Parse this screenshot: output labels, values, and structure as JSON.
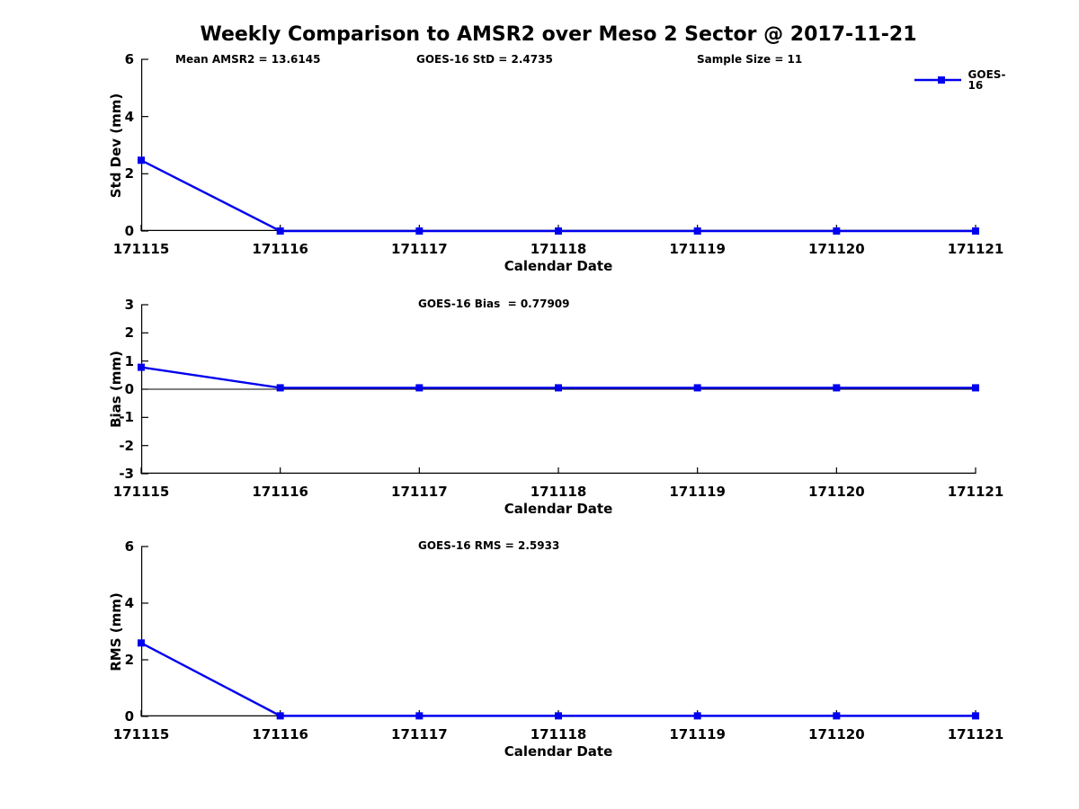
{
  "title": "Weekly Comparison to AMSR2 over Meso 2 Sector @ 2017-11-21",
  "legend": {
    "label": "GOES-16",
    "position": "northeast",
    "line_color": "#0000EE"
  },
  "chart_data": [
    {
      "type": "line",
      "name": "std-dev",
      "ylabel": "Std Dev (mm)",
      "xlabel": "Calendar Date",
      "x": [
        171115,
        171116,
        171117,
        171118,
        171119,
        171120,
        171121
      ],
      "xticklabels": [
        "171115",
        "171116",
        "171117",
        "171118",
        "171119",
        "171120",
        "171121"
      ],
      "ylim": [
        0,
        6
      ],
      "yticks": [
        0,
        2,
        4,
        6
      ],
      "grid": false,
      "zero_line": false,
      "series": [
        {
          "name": "GOES-16",
          "color": "#0000EE",
          "marker": "square",
          "values": [
            2.4735,
            0,
            0,
            0,
            0,
            0,
            0
          ]
        }
      ],
      "annotations": [
        {
          "text": "Mean AMSR2 = 13.6145"
        },
        {
          "text": "GOES-16 StD = 2.4735"
        },
        {
          "text": "Sample Size = 11"
        }
      ]
    },
    {
      "type": "line",
      "name": "bias",
      "ylabel": "Bias (mm)",
      "xlabel": "Calendar Date",
      "x": [
        171115,
        171116,
        171117,
        171118,
        171119,
        171120,
        171121
      ],
      "xticklabels": [
        "171115",
        "171116",
        "171117",
        "171118",
        "171119",
        "171120",
        "171121"
      ],
      "ylim": [
        -3,
        3
      ],
      "yticks": [
        -3,
        -2,
        -1,
        0,
        1,
        2,
        3
      ],
      "grid": false,
      "zero_line": true,
      "series": [
        {
          "name": "GOES-16",
          "color": "#0000EE",
          "marker": "square",
          "values": [
            0.77909,
            0.05,
            0.05,
            0.05,
            0.05,
            0.05,
            0.05
          ]
        }
      ],
      "annotations": [
        {
          "text": "GOES-16 Bias  = 0.77909"
        }
      ]
    },
    {
      "type": "line",
      "name": "rms",
      "ylabel": "RMS (mm)",
      "xlabel": "Calendar Date",
      "x": [
        171115,
        171116,
        171117,
        171118,
        171119,
        171120,
        171121
      ],
      "xticklabels": [
        "171115",
        "171116",
        "171117",
        "171118",
        "171119",
        "171120",
        "171121"
      ],
      "ylim": [
        0,
        6
      ],
      "yticks": [
        0,
        2,
        4,
        6
      ],
      "grid": false,
      "zero_line": false,
      "series": [
        {
          "name": "GOES-16",
          "color": "#0000EE",
          "marker": "square",
          "values": [
            2.5933,
            0.02,
            0.02,
            0.02,
            0.02,
            0.02,
            0.02
          ]
        }
      ],
      "annotations": [
        {
          "text": "GOES-16 RMS = 2.5933"
        }
      ]
    }
  ]
}
